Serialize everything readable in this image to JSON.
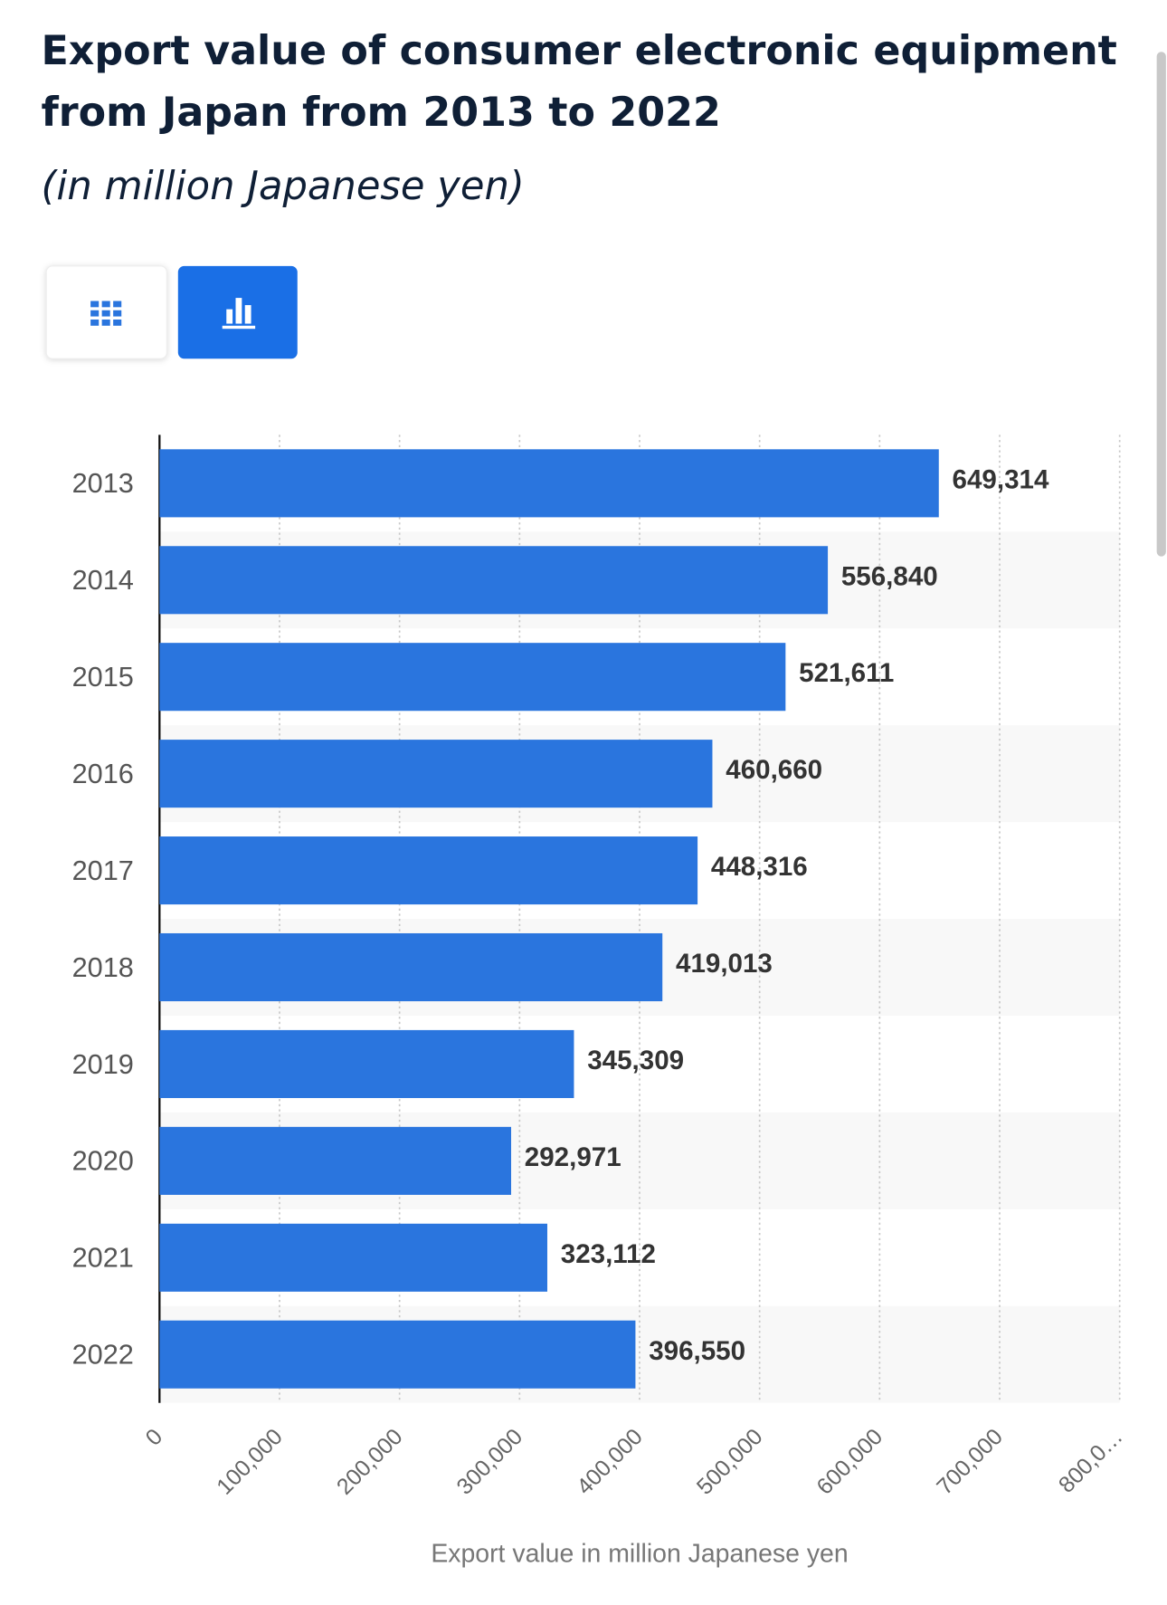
{
  "chart_data": {
    "type": "bar",
    "orientation": "horizontal",
    "title": "Export value of consumer electronic equipment from Japan from 2013 to 2022",
    "subtitle": "(in million Japanese yen)",
    "x_label": "Export value in million Japanese yen",
    "categories": [
      "2013",
      "2014",
      "2015",
      "2016",
      "2017",
      "2018",
      "2019",
      "2020",
      "2021",
      "2022"
    ],
    "values": [
      649314,
      556840,
      521611,
      460660,
      448316,
      419013,
      345309,
      292971,
      323112,
      396550
    ],
    "value_labels": [
      "649,314",
      "556,840",
      "521,611",
      "460,660",
      "448,316",
      "419,013",
      "345,309",
      "292,971",
      "323,112",
      "396,550"
    ],
    "color": "#2a75de",
    "xlim": [
      0,
      800000
    ],
    "xticks": [
      0,
      {
        "value": 100000,
        "label": "100,000"
      },
      {
        "value": 200000,
        "label": "200,000"
      },
      {
        "value": 300000,
        "label": "300,000"
      },
      {
        "value": 400000,
        "label": "400,000"
      },
      {
        "value": 500000,
        "label": "500,000"
      },
      {
        "value": 600000,
        "label": "600,000"
      },
      {
        "value": 700000,
        "label": "700,000"
      },
      {
        "value": 800000,
        "label": "800,0…"
      }
    ],
    "grid": true
  }
}
